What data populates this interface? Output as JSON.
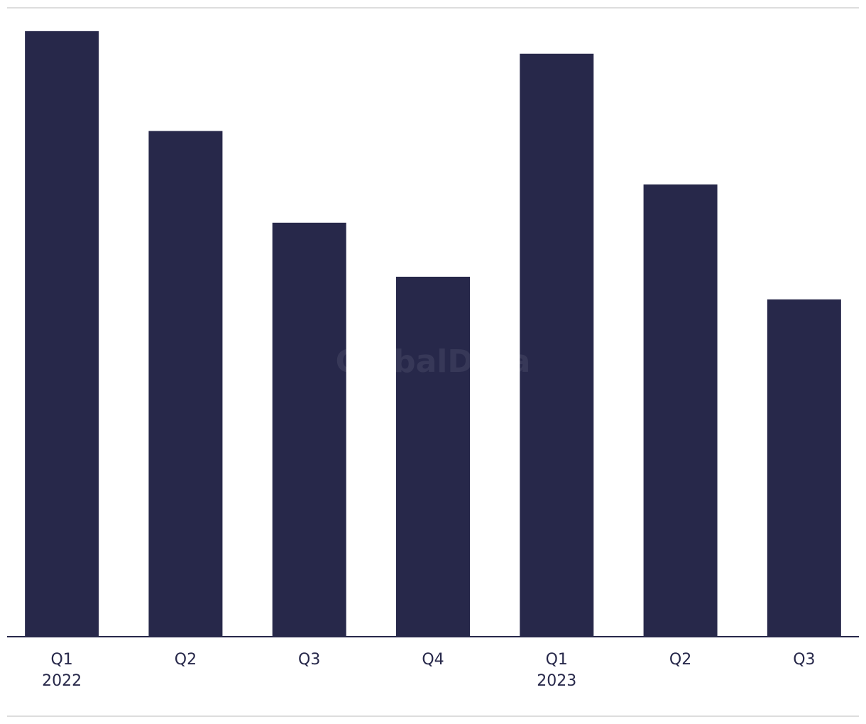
{
  "chart_data": {
    "type": "bar",
    "watermark": "GlobalData",
    "categories": [
      "Q1",
      "Q2",
      "Q3",
      "Q4",
      "Q1",
      "Q2",
      "Q3"
    ],
    "sublabels": [
      "2022",
      null,
      null,
      null,
      "2023",
      null,
      null
    ],
    "values": [
      96.4,
      80.5,
      65.9,
      57.3,
      92.8,
      72,
      53.7
    ],
    "color": "#27284a",
    "ylim": [
      0,
      100
    ]
  }
}
